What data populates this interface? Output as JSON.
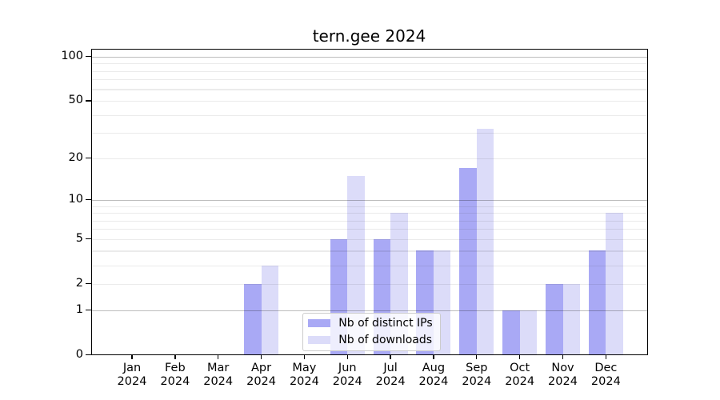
{
  "figure": {
    "background": "#ffffff"
  },
  "chart_data": {
    "type": "bar",
    "title": "tern.gee 2024",
    "categories": [
      "Jan",
      "Feb",
      "Mar",
      "Apr",
      "May",
      "Jun",
      "Jul",
      "Aug",
      "Sep",
      "Oct",
      "Nov",
      "Dec"
    ],
    "x_tick_second_line": "2024",
    "series": [
      {
        "name": "Nb of distinct IPs",
        "color": "#a9a9f5",
        "values": [
          0,
          0,
          0,
          2,
          0,
          5,
          5,
          4,
          17,
          1,
          2,
          4
        ]
      },
      {
        "name": "Nb of downloads",
        "color": "#dcdcf9",
        "values": [
          0,
          0,
          0,
          3,
          0,
          15,
          8,
          4,
          32,
          1,
          2,
          8
        ]
      }
    ],
    "yscale": "log1p",
    "ylim": [
      0,
      114
    ],
    "grid": true,
    "legend_position": "lower center",
    "y_axis": {
      "tick_labels": [
        "100",
        "50",
        "20",
        "10",
        "5",
        "2",
        "1",
        "0"
      ],
      "tick_values": [
        100,
        50,
        20,
        10,
        5,
        2,
        1,
        0
      ],
      "major_gridlines": [
        100,
        10,
        1
      ],
      "minor_gridlines": [
        90,
        80,
        70,
        60,
        50,
        40,
        30,
        20,
        9,
        8,
        7,
        6,
        5,
        4,
        3,
        2
      ]
    },
    "colors": {
      "major_grid": "#bdbdbd",
      "minor_grid": "#ebebeb",
      "axis_frame": "#000000",
      "tick_text": "#000000"
    }
  }
}
